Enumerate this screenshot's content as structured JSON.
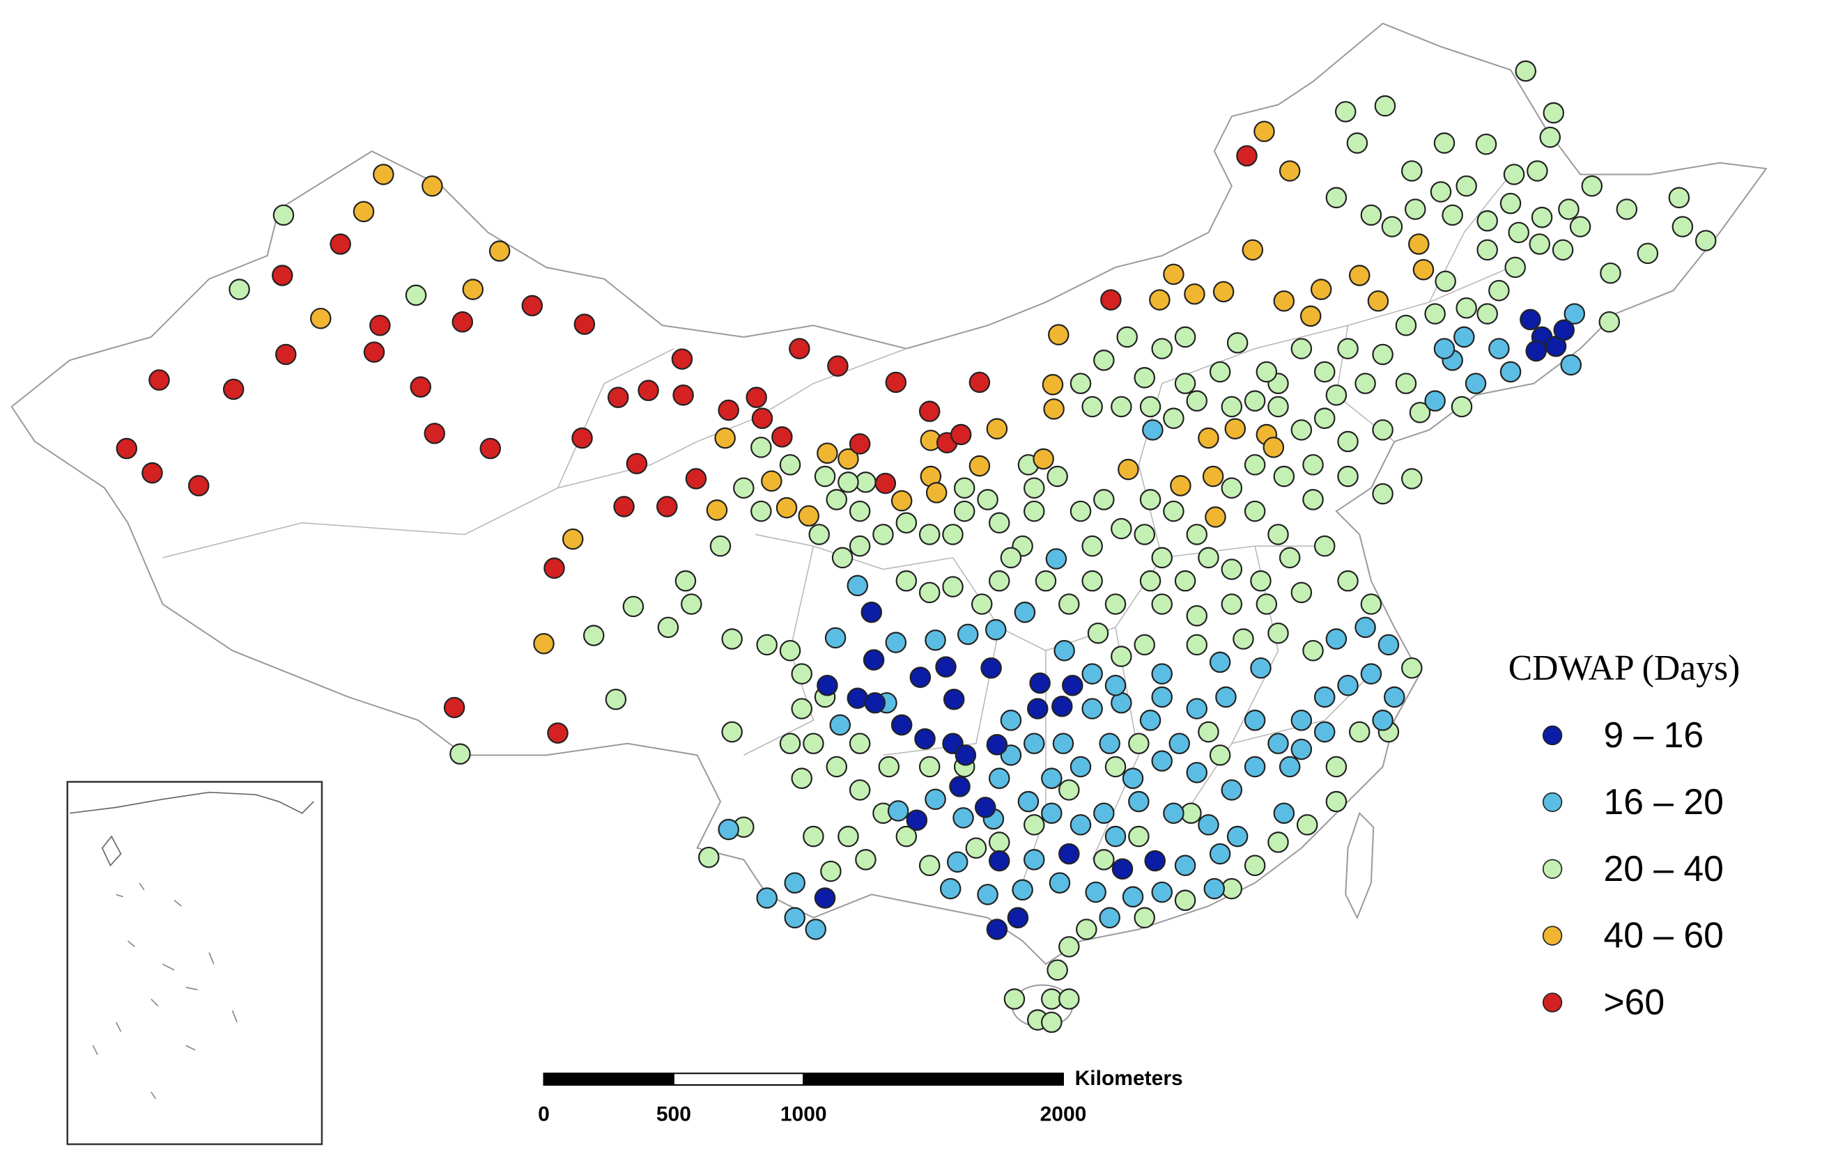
{
  "legend": {
    "title": "CDWAP (Days)",
    "items": [
      {
        "label": "9 – 16",
        "color": "#0b1da6"
      },
      {
        "label": "16 – 20",
        "color": "#5bbde3"
      },
      {
        "label": "20 – 40",
        "color": "#c4f0b4"
      },
      {
        "label": "40 – 60",
        "color": "#f0b631"
      },
      {
        "label": ">60",
        "color": "#d42121"
      }
    ]
  },
  "scale_bar": {
    "ticks": [
      0,
      500,
      1000,
      2000
    ],
    "unit": "Kilometers"
  }
}
